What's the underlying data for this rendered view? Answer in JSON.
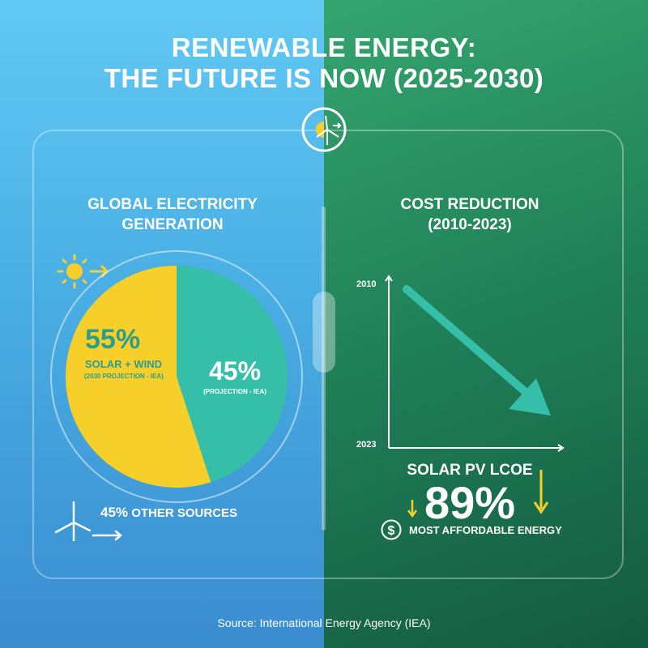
{
  "title": {
    "line1": "RENEWABLE ENERGY:",
    "line2": "THE FUTURE IS NOW (2025-2030)"
  },
  "left": {
    "heading1": "GLOBAL ELECTRICITY",
    "heading2": "GENERATION",
    "pie_main_value": "55%",
    "pie_main_label": "SOLAR + WIND",
    "pie_main_note": "(2030 PROJECTION - IEA)",
    "pie_other_value": "45%",
    "pie_other_note": "(PROJECTION - IEA)",
    "footer_value": "45%",
    "footer_label": "OTHER SOURCES"
  },
  "right": {
    "heading1": "COST REDUCTION",
    "heading2": "(2010-2023)",
    "y_top": "2010",
    "y_bottom": "2023",
    "metric_label": "SOLAR PV LCOE",
    "metric_value": "89%",
    "metric_caption": "MOST AFFORDABLE ENERGY"
  },
  "chart_data": {
    "type": "pie",
    "slices": [
      {
        "label": "SOLAR + WIND",
        "value": 55,
        "color": "#f7cf2a"
      },
      {
        "label": "(PROJECTION - IEA)",
        "value": 45,
        "color": "#35bfa9"
      }
    ]
  },
  "source": "Source: International Energy Agency (IEA)",
  "colors": {
    "yellow": "#f7cf2a",
    "teal": "#35bfa9",
    "blue": "#4aaee3",
    "green": "#1f7f57"
  }
}
